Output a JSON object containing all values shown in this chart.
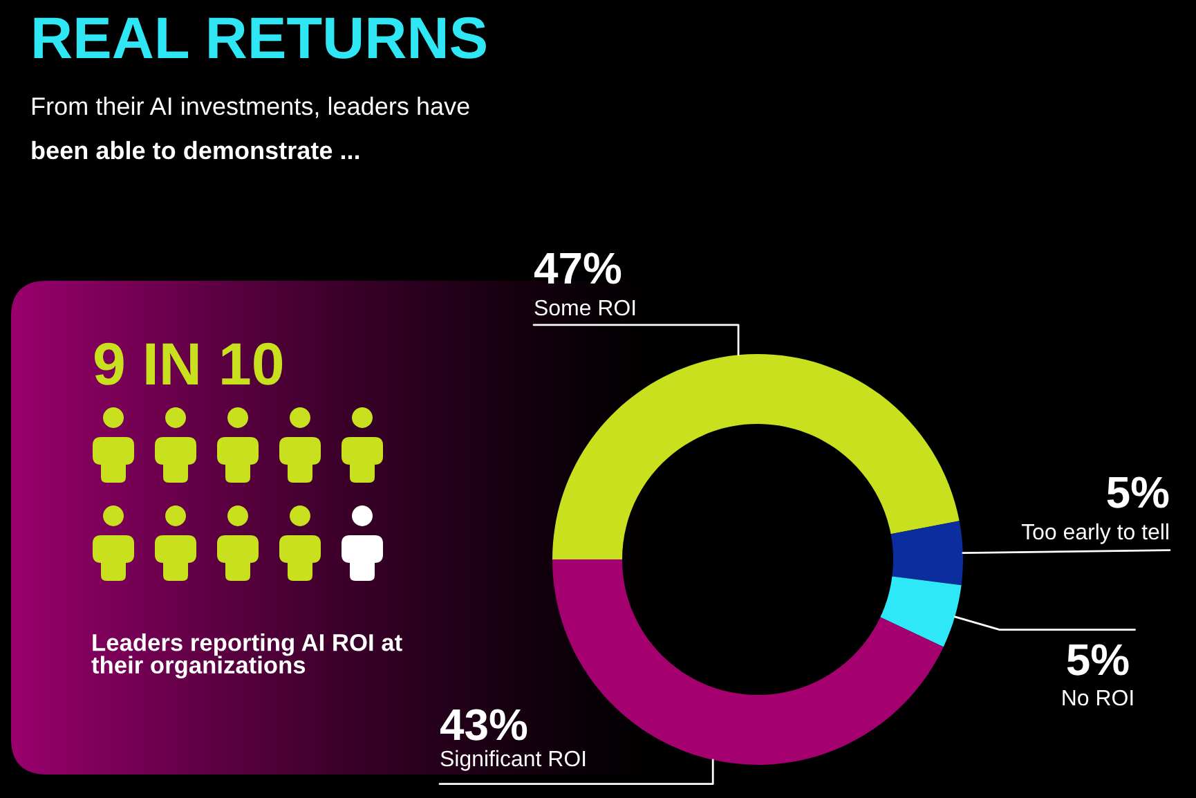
{
  "chart_data": [
    {
      "type": "donut",
      "title": "REAL RETURNS",
      "subtitle": "From their AI investments, leaders have\nbeen able to demonstrate ...",
      "categories": [
        "Some ROI",
        "Too early to tell",
        "No ROI",
        "Significant ROI"
      ],
      "values": [
        47,
        5,
        5,
        43
      ],
      "colors": [
        "#c8e01e",
        "#0b2d9e",
        "#2ee8f8",
        "#a5006f"
      ],
      "value_labels": [
        "47%",
        "5%",
        "5%",
        "43%"
      ]
    },
    {
      "type": "other",
      "title": "9 IN 10",
      "annotations": [
        "Leaders reporting AI ROI at\ntheir organizations"
      ]
    }
  ]
}
